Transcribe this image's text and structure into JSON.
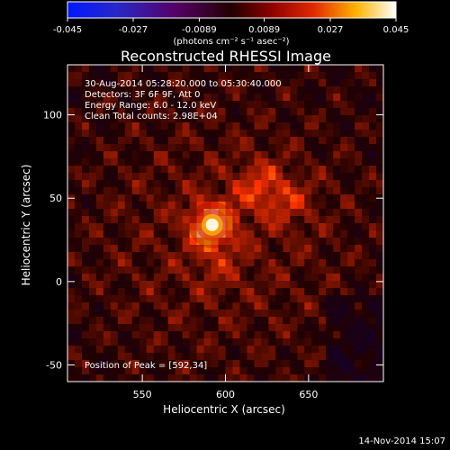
{
  "chart_data": {
    "type": "heatmap",
    "title": "Reconstructed RHESSI Image",
    "xlabel": "Heliocentric X (arcsec)",
    "ylabel": "Heliocentric Y (arcsec)",
    "xlim": [
      505,
      695
    ],
    "ylim": [
      -60,
      130
    ],
    "x_ticks": [
      "550",
      "600",
      "650"
    ],
    "y_ticks": [
      "-50",
      "0",
      "50",
      "100"
    ],
    "colorbar": {
      "range": [
        -0.045,
        0.045
      ],
      "ticks": [
        "-0.045",
        "-0.027",
        "-0.0089",
        "0.0089",
        "0.027",
        "0.045"
      ],
      "units_label": "(photons cm⁻² s⁻¹ asec⁻²)"
    },
    "annotations": {
      "time_range": "30-Aug-2014 05:28:20.000 to 05:30:40.000",
      "detectors": "Detectors: 3F 6F 9F, Att 0",
      "energy_range": "Energy Range: 6.0 - 12.0 keV",
      "clean_line": "Clean     Total counts: 2.98E+04",
      "peak_position": "Position of Peak = [592,34]"
    },
    "footer_timestamp": "14-Nov-2014 15:07",
    "peak": {
      "x": 592,
      "y": 34,
      "value": 0.045
    },
    "secondary_peaks": [
      {
        "x": 620,
        "y": 57,
        "value": 0.014
      },
      {
        "x": 638,
        "y": 48,
        "value": 0.01
      },
      {
        "x": 595,
        "y": 10,
        "value": 0.007
      }
    ],
    "colormap": "rainbow-heat"
  }
}
